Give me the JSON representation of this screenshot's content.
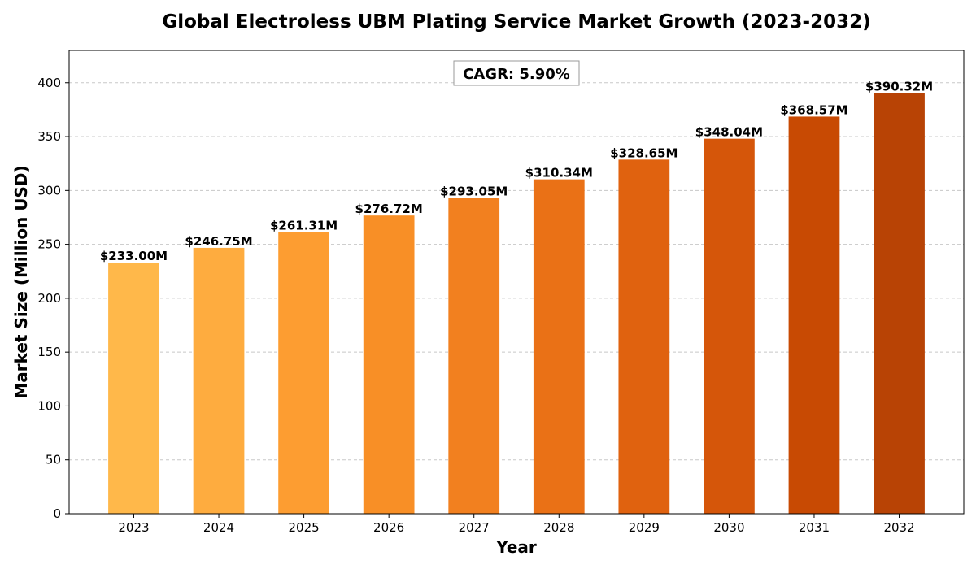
{
  "chart_data": {
    "type": "bar",
    "title": "Global Electroless UBM Plating Service Market Growth (2023-2032)",
    "xlabel": "Year",
    "ylabel": "Market Size (Million USD)",
    "categories": [
      "2023",
      "2024",
      "2025",
      "2026",
      "2027",
      "2028",
      "2029",
      "2030",
      "2031",
      "2032"
    ],
    "values": [
      233.0,
      246.75,
      261.31,
      276.72,
      293.05,
      310.34,
      328.65,
      348.04,
      368.57,
      390.32
    ],
    "data_labels": [
      "$233.00M",
      "$246.75M",
      "$261.31M",
      "$276.72M",
      "$293.05M",
      "$310.34M",
      "$328.65M",
      "$348.04M",
      "$368.57M",
      "$390.32M"
    ],
    "bar_colors": [
      "#FFB84A",
      "#FEAC3F",
      "#FD9D31",
      "#F88F26",
      "#F2801F",
      "#EA7116",
      "#E0620F",
      "#D5560A",
      "#C84A03",
      "#B84305"
    ],
    "ylim": [
      0,
      430
    ],
    "yticks": [
      0,
      50,
      100,
      150,
      200,
      250,
      300,
      350,
      400
    ],
    "grid": "y-dashed",
    "annotation": "CAGR: 5.90%"
  }
}
